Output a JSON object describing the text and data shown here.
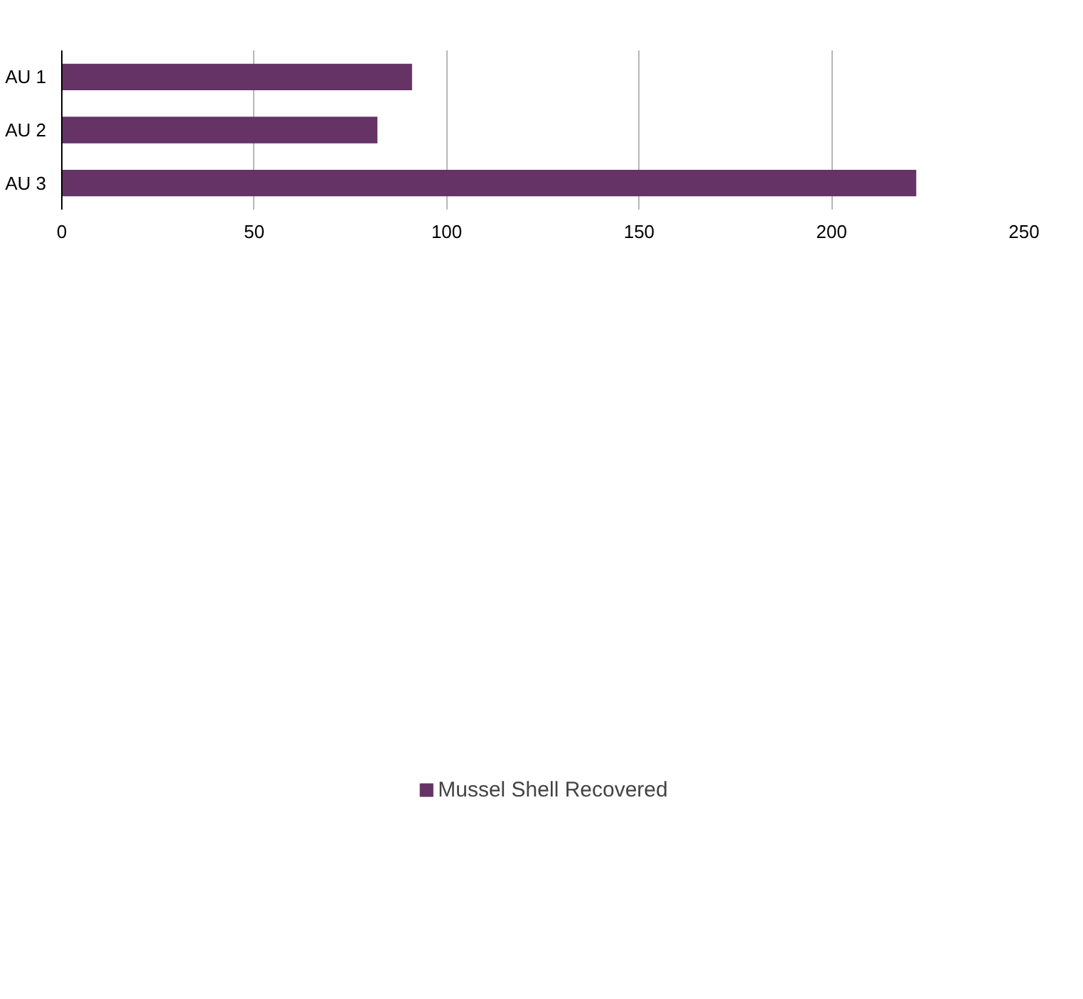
{
  "chart_data": {
    "type": "bar",
    "orientation": "horizontal",
    "categories": [
      "AU 1",
      "AU 2",
      "AU 3"
    ],
    "series": [
      {
        "name": "Mussel Shell Recovered",
        "color": "#663366",
        "values": [
          91,
          82,
          222
        ]
      }
    ],
    "xlim": [
      0,
      250
    ],
    "xticks": [
      0,
      50,
      100,
      150,
      200,
      250
    ],
    "grid": "x",
    "legend": "bottom"
  }
}
